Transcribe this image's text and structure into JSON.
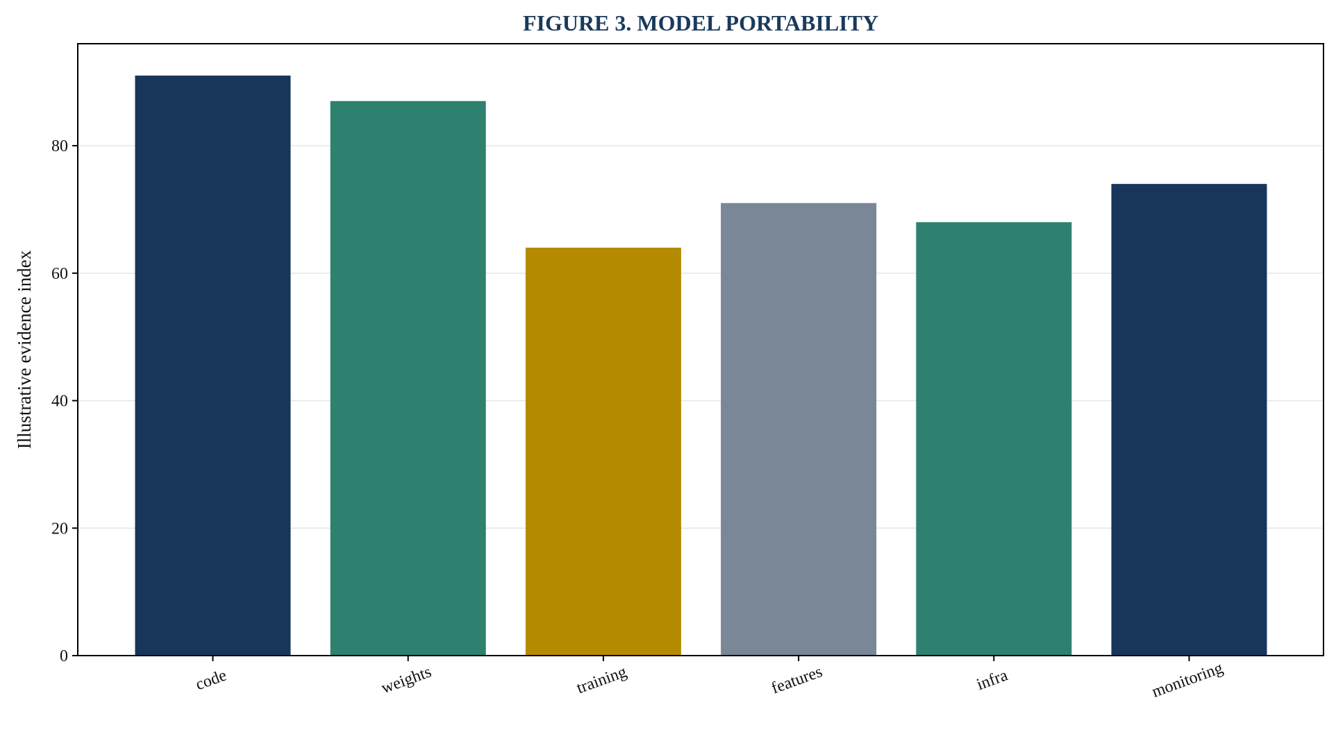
{
  "chart_data": {
    "type": "bar",
    "title": "FIGURE 3. MODEL PORTABILITY",
    "xlabel": "",
    "ylabel": "Illustrative evidence index",
    "categories": [
      "code",
      "weights",
      "training",
      "features",
      "infra",
      "monitoring"
    ],
    "values": [
      91,
      87,
      64,
      71,
      68,
      74
    ],
    "colors": [
      "#18365c",
      "#2e806f",
      "#b38a00",
      "#7a8796",
      "#2e806f",
      "#18365c"
    ],
    "ylim": [
      0,
      96
    ],
    "yticks": [
      0,
      20,
      40,
      60,
      80
    ],
    "ytick_labels": [
      "0",
      "20",
      "40",
      "60",
      "80"
    ],
    "grid": true,
    "title_color": "#1a3a5c",
    "grid_color": "#e6e6e6",
    "axis_color": "#000000"
  }
}
